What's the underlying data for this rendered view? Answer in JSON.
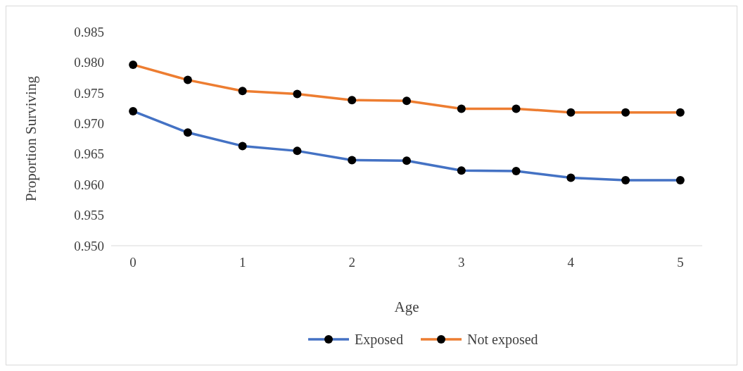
{
  "chart_data": {
    "type": "line",
    "xlabel": "Age",
    "ylabel": "Proportion Surviving",
    "x": [
      0,
      0.5,
      1,
      1.5,
      2,
      2.5,
      3,
      3.5,
      4,
      4.5,
      5
    ],
    "xlim": [
      -0.2,
      5.2
    ],
    "xticks": [
      0,
      1,
      2,
      3,
      4,
      5
    ],
    "ylim": [
      0.95,
      0.985
    ],
    "yticks": [
      {
        "value": 0.95,
        "label": "0.950"
      },
      {
        "value": 0.955,
        "label": "0.955"
      },
      {
        "value": 0.96,
        "label": "0.960"
      },
      {
        "value": 0.965,
        "label": "0.965"
      },
      {
        "value": 0.97,
        "label": "0.970"
      },
      {
        "value": 0.975,
        "label": "0.975"
      },
      {
        "value": 0.98,
        "label": "0.980"
      },
      {
        "value": 0.985,
        "label": "0.985"
      }
    ],
    "series": [
      {
        "name": "Exposed",
        "color": "#4472c4",
        "values": [
          0.972,
          0.9685,
          0.9663,
          0.9655,
          0.964,
          0.9639,
          0.9623,
          0.9622,
          0.9611,
          0.9607,
          0.9607
        ]
      },
      {
        "name": "Not exposed",
        "color": "#ed7d31",
        "values": [
          0.9796,
          0.9771,
          0.9753,
          0.9748,
          0.9738,
          0.9737,
          0.9724,
          0.9724,
          0.9718,
          0.9718,
          0.9718
        ]
      }
    ],
    "marker": "circle",
    "line_style": "solid",
    "grid": false,
    "legend": "bottom"
  }
}
